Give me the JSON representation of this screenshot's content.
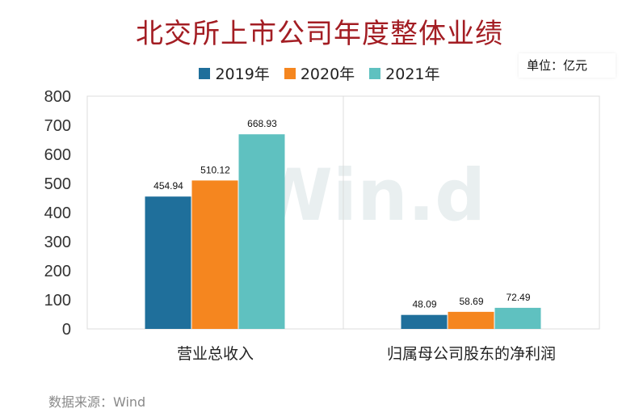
{
  "title": "北交所上市公司年度整体业绩",
  "unit_label": "单位：亿元",
  "source": "数据来源：Wind",
  "watermark": "Win.d",
  "chart_data": {
    "type": "bar",
    "categories": [
      "营业总收入",
      "归属母公司股东的净利润"
    ],
    "series": [
      {
        "name": "2019年",
        "values": [
          454.94,
          48.09
        ],
        "color": "#1f6f9b"
      },
      {
        "name": "2020年",
        "values": [
          510.12,
          58.69
        ],
        "color": "#f5861f"
      },
      {
        "name": "2021年",
        "values": [
          668.93,
          72.49
        ],
        "color": "#5fc1c0"
      }
    ],
    "ylim": [
      0,
      800
    ],
    "yticks": [
      0,
      100,
      200,
      300,
      400,
      500,
      600,
      700,
      800
    ],
    "legend": "top-center",
    "grid": false
  }
}
